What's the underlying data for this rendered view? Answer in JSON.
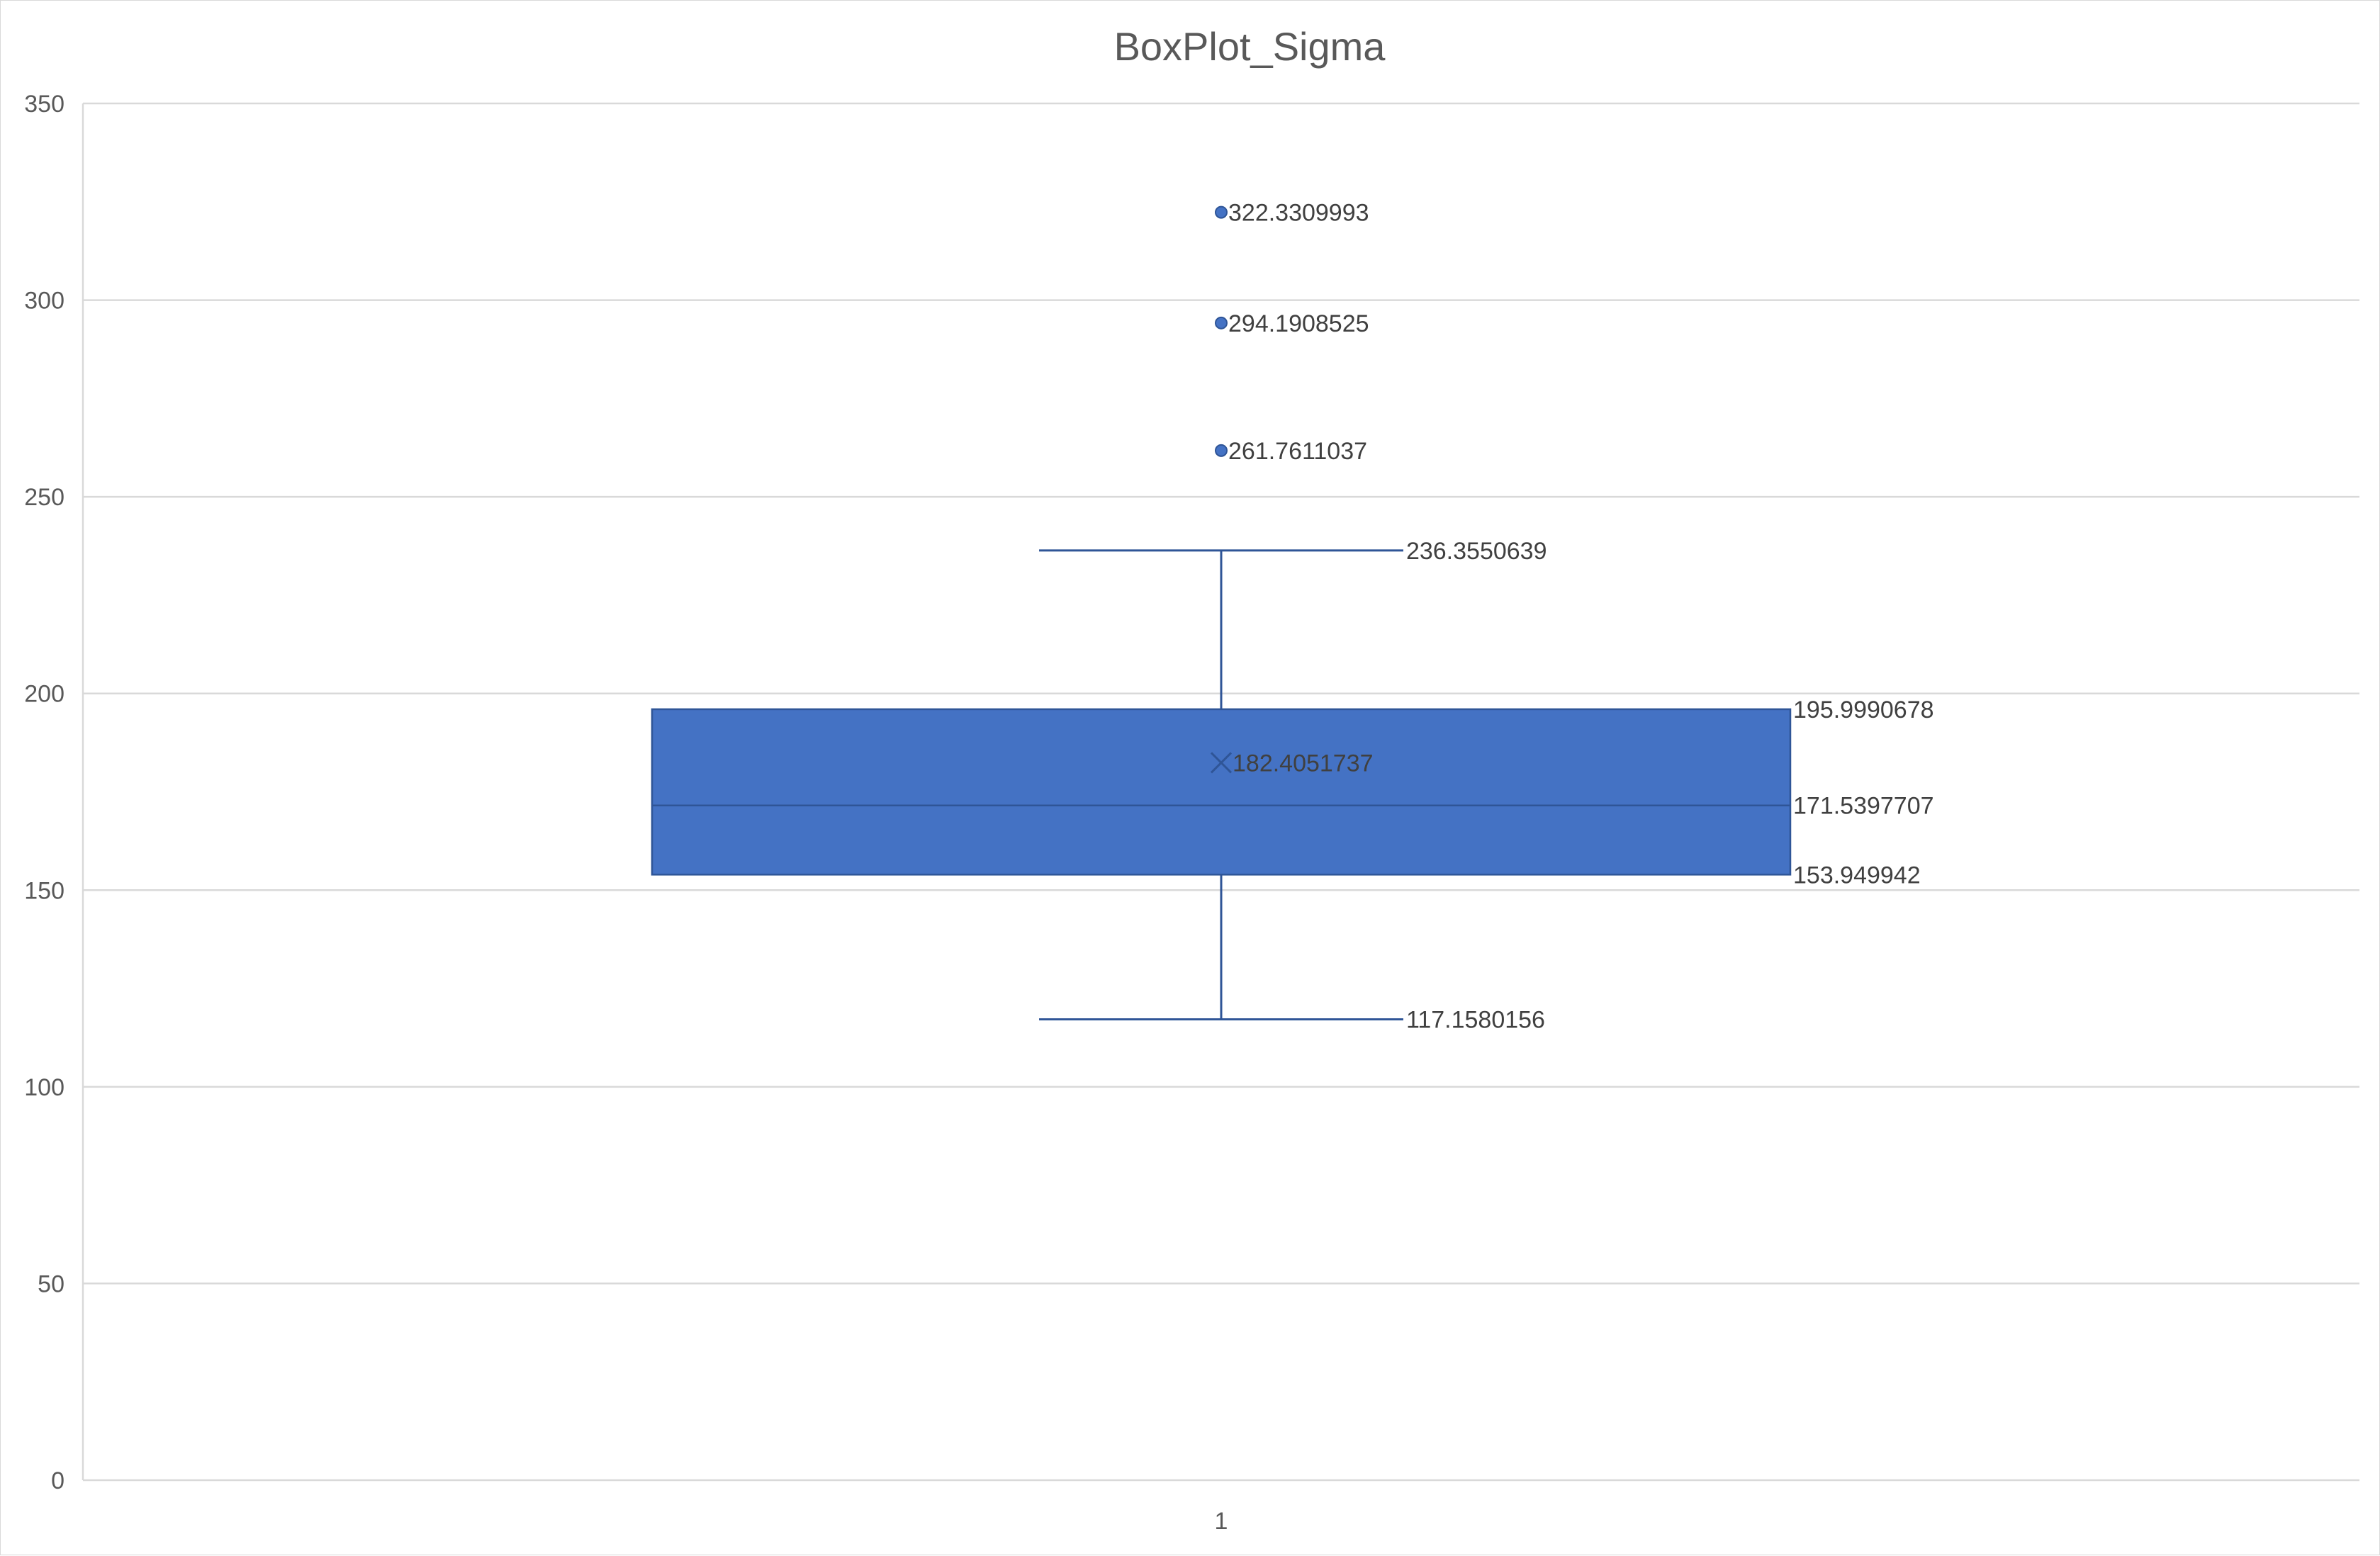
{
  "colors": {
    "box_fill": "#4472C4",
    "box_stroke": "#2F5597",
    "whisker": "#2F5597",
    "outlier": "#4472C4",
    "mean_marker": "#2F5597",
    "gridline": "#D9D9D9",
    "text": "#595959"
  },
  "chart_data": {
    "type": "boxplot",
    "title": "BoxPlot_Sigma",
    "xlabel": "",
    "ylabel": "",
    "ylim": [
      0,
      350
    ],
    "y_ticks": [
      0,
      50,
      100,
      150,
      200,
      250,
      300,
      350
    ],
    "y_tick_labels": [
      "0",
      "50",
      "100",
      "150",
      "200",
      "250",
      "300",
      "350"
    ],
    "grid": true,
    "legend": "none",
    "categories": [
      "1"
    ],
    "boxes": [
      {
        "category": "1",
        "whisker_low": 117.1580156,
        "q1": 153.949942,
        "median": 171.5397707,
        "q3": 195.9990678,
        "whisker_high": 236.3550639,
        "mean": 182.4051737,
        "outliers": [
          261.7611037,
          294.1908525,
          322.3309993
        ],
        "labels": {
          "whisker_low": "117.1580156",
          "q1": "153.949942",
          "median": "171.5397707",
          "q3": "195.9990678",
          "whisker_high": "236.3550639",
          "mean": "182.4051737",
          "outliers": [
            "261.7611037",
            "294.1908525",
            "322.3309993"
          ]
        }
      }
    ]
  }
}
